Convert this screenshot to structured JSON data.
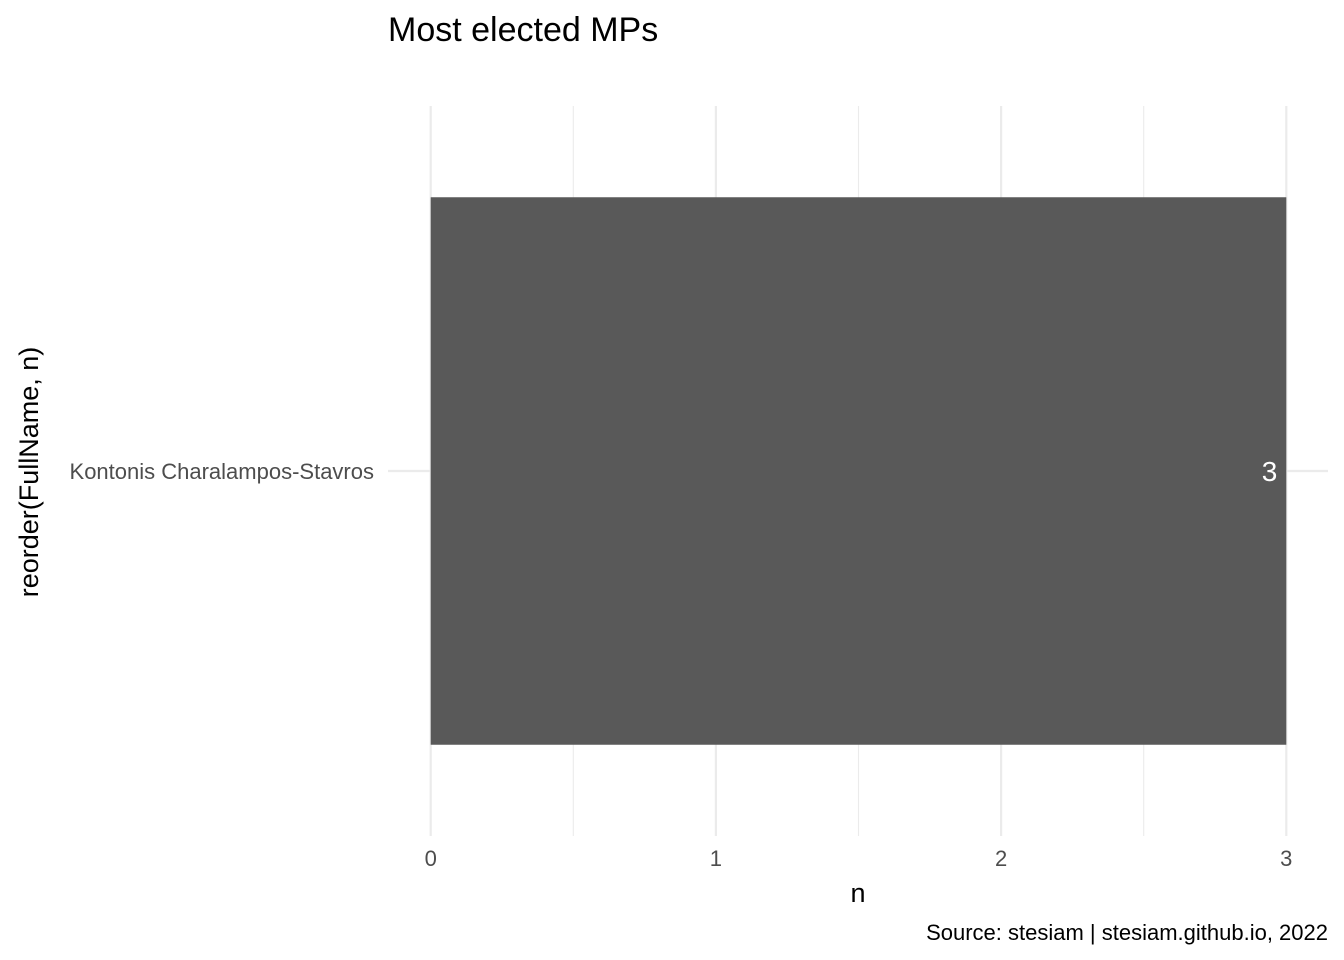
{
  "chart_data": {
    "type": "bar",
    "orientation": "horizontal",
    "title": "Most elected MPs",
    "xlabel": "n",
    "ylabel": "reorder(FullName, n)",
    "caption": "Source: stesiam | stesiam.github.io, 2022",
    "categories": [
      "Kontonis Charalampos-Stavros"
    ],
    "values": [
      3
    ],
    "data_labels": [
      "3"
    ],
    "xlim": [
      0,
      3
    ],
    "x_ticks": [
      0,
      1,
      2,
      3
    ],
    "x_tick_labels": [
      "0",
      "1",
      "2",
      "3"
    ],
    "grid": true,
    "bar_color": "#595959",
    "grid_color": "#ebebeb",
    "label_color": "#ffffff"
  }
}
